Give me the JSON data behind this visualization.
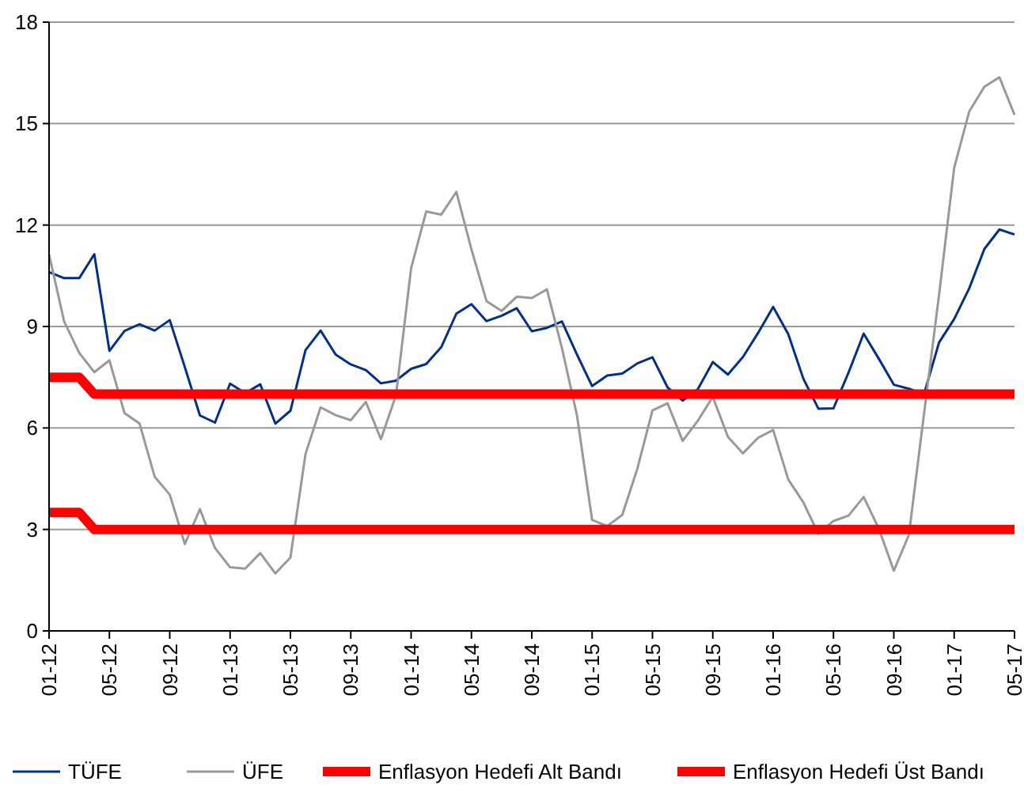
{
  "chart_data": {
    "type": "line",
    "categories": [
      "01-12",
      null,
      null,
      null,
      "05-12",
      null,
      null,
      null,
      "09-12",
      null,
      null,
      null,
      "01-13",
      null,
      null,
      null,
      "05-13",
      null,
      null,
      null,
      "09-13",
      null,
      null,
      null,
      "01-14",
      null,
      null,
      null,
      "05-14",
      null,
      null,
      null,
      "09-14",
      null,
      null,
      null,
      "01-15",
      null,
      null,
      null,
      "05-15",
      null,
      null,
      null,
      "09-15",
      null,
      null,
      null,
      "01-16",
      null,
      null,
      null,
      "05-16",
      null,
      null,
      null,
      "09-16",
      null,
      null,
      null,
      "01-17",
      null,
      null,
      null,
      "05-17"
    ],
    "series": [
      {
        "name": "TÜFE",
        "color": "#003087",
        "values": [
          10.61,
          10.43,
          10.43,
          11.14,
          8.28,
          8.87,
          9.07,
          8.88,
          9.19,
          7.8,
          6.37,
          6.16,
          7.31,
          7.03,
          7.29,
          6.13,
          6.51,
          8.3,
          8.88,
          8.17,
          7.88,
          7.71,
          7.32,
          7.4,
          7.75,
          7.89,
          8.39,
          9.38,
          9.66,
          9.16,
          9.32,
          9.54,
          8.86,
          8.96,
          9.15,
          8.17,
          7.24,
          7.55,
          7.61,
          7.91,
          8.09,
          7.2,
          6.81,
          7.14,
          7.95,
          7.58,
          8.1,
          8.81,
          9.58,
          8.78,
          7.46,
          6.57,
          6.58,
          7.64,
          8.79,
          8.05,
          7.28,
          7.16,
          7.0,
          8.53,
          9.22,
          10.13,
          11.29,
          11.87,
          11.72
        ]
      },
      {
        "name": "ÜFE",
        "color": "#999999",
        "values": [
          11.13,
          9.15,
          8.22,
          7.65,
          8.0,
          6.44,
          6.13,
          4.56,
          4.03,
          2.57,
          3.6,
          2.45,
          1.88,
          1.84,
          2.3,
          1.7,
          2.17,
          5.23,
          6.61,
          6.38,
          6.23,
          6.77,
          5.67,
          6.97,
          10.72,
          12.4,
          12.31,
          12.98,
          11.28,
          9.75,
          9.46,
          9.88,
          9.84,
          10.1,
          8.36,
          6.36,
          3.28,
          3.1,
          3.43,
          4.8,
          6.52,
          6.73,
          5.62,
          6.21,
          6.92,
          5.74,
          5.25,
          5.71,
          5.94,
          4.48,
          3.8,
          2.87,
          3.25,
          3.41,
          3.96,
          3.03,
          1.78,
          2.84,
          6.41,
          9.94,
          13.69,
          15.36,
          16.09,
          16.37,
          15.26
        ]
      },
      {
        "name": "Enflasyon Hedefi Alt Bandı",
        "color": "#ff0000",
        "values": [
          3.5,
          3.5,
          3.5,
          3,
          3,
          3,
          3,
          3,
          3,
          3,
          3,
          3,
          3,
          3,
          3,
          3,
          3,
          3,
          3,
          3,
          3,
          3,
          3,
          3,
          3,
          3,
          3,
          3,
          3,
          3,
          3,
          3,
          3,
          3,
          3,
          3,
          3,
          3,
          3,
          3,
          3,
          3,
          3,
          3,
          3,
          3,
          3,
          3,
          3,
          3,
          3,
          3,
          3,
          3,
          3,
          3,
          3,
          3,
          3,
          3,
          3,
          3,
          3,
          3,
          3
        ]
      },
      {
        "name": "Enflasyon Hedefi Üst Bandı",
        "color": "#ff0000",
        "values": [
          7.5,
          7.5,
          7.5,
          7,
          7,
          7,
          7,
          7,
          7,
          7,
          7,
          7,
          7,
          7,
          7,
          7,
          7,
          7,
          7,
          7,
          7,
          7,
          7,
          7,
          7,
          7,
          7,
          7,
          7,
          7,
          7,
          7,
          7,
          7,
          7,
          7,
          7,
          7,
          7,
          7,
          7,
          7,
          7,
          7,
          7,
          7,
          7,
          7,
          7,
          7,
          7,
          7,
          7,
          7,
          7,
          7,
          7,
          7,
          7,
          7,
          7,
          7,
          7,
          7,
          7
        ]
      }
    ],
    "ylim": [
      0,
      18
    ],
    "yticks": [
      0,
      3,
      6,
      9,
      12,
      15,
      18
    ],
    "grid": "y",
    "legend": "bottom",
    "marker": "none",
    "line_style": "solid"
  }
}
